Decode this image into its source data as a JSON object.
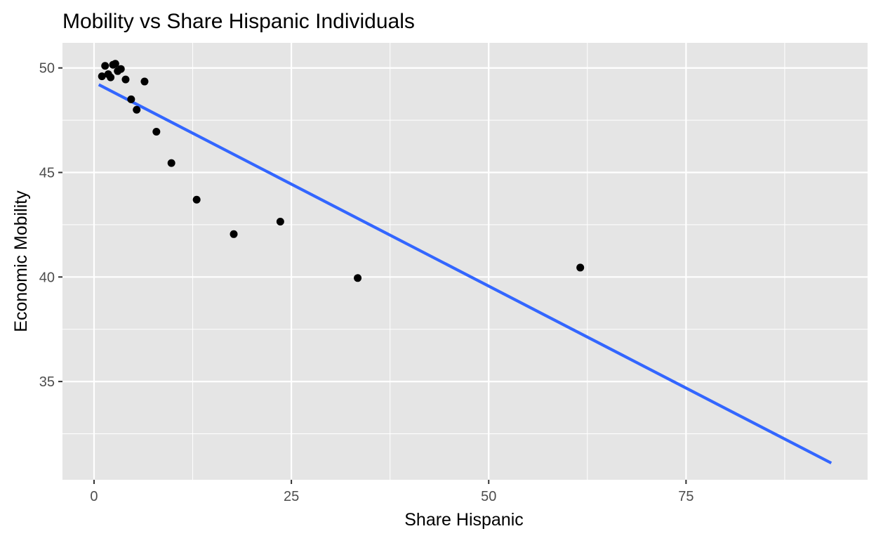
{
  "chart_data": {
    "type": "scatter",
    "title": "Mobility vs Share Hispanic Individuals",
    "xlabel": "Share Hispanic",
    "ylabel": "Economic Mobility",
    "xlim": [
      -4,
      98
    ],
    "ylim": [
      30.3,
      51.2
    ],
    "x_ticks": [
      0,
      25,
      50,
      75
    ],
    "y_ticks": [
      35,
      40,
      45,
      50
    ],
    "x_minor": [
      12.5,
      37.5,
      62.5,
      87.5
    ],
    "y_minor": [
      32.5,
      37.5,
      42.5,
      47.5
    ],
    "grid": true,
    "colors": {
      "panel": "#e5e5e5",
      "grid": "#ffffff",
      "points": "#000000",
      "fit_line": "#3366ff",
      "tick_text": "#4d4d4d",
      "title_text": "#000000"
    },
    "series": [
      {
        "name": "points",
        "points": [
          {
            "x": 1.0,
            "y": 49.6
          },
          {
            "x": 1.4,
            "y": 50.1
          },
          {
            "x": 1.8,
            "y": 49.7
          },
          {
            "x": 2.1,
            "y": 49.55
          },
          {
            "x": 2.4,
            "y": 50.15
          },
          {
            "x": 2.7,
            "y": 50.2
          },
          {
            "x": 3.0,
            "y": 49.85
          },
          {
            "x": 3.4,
            "y": 49.95
          },
          {
            "x": 4.0,
            "y": 49.45
          },
          {
            "x": 4.7,
            "y": 48.5
          },
          {
            "x": 5.4,
            "y": 48.0
          },
          {
            "x": 6.4,
            "y": 49.35
          },
          {
            "x": 7.9,
            "y": 46.95
          },
          {
            "x": 9.8,
            "y": 45.45
          },
          {
            "x": 13.0,
            "y": 43.7
          },
          {
            "x": 17.7,
            "y": 42.05
          },
          {
            "x": 23.6,
            "y": 42.65
          },
          {
            "x": 33.4,
            "y": 39.95
          },
          {
            "x": 61.6,
            "y": 40.45
          }
        ]
      },
      {
        "name": "linear fit",
        "type": "line",
        "x": [
          0.6,
          93.4
        ],
        "y": [
          49.2,
          31.1
        ]
      }
    ]
  }
}
